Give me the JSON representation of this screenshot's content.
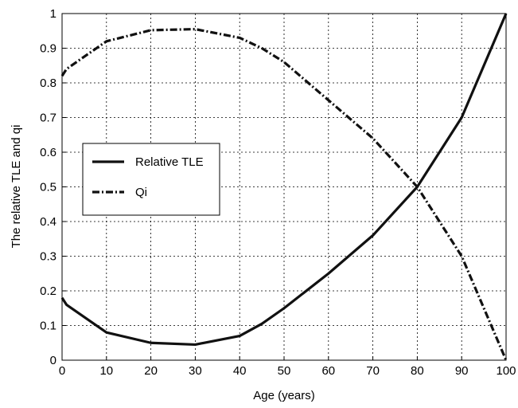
{
  "chart_data": {
    "type": "line",
    "title": "",
    "xlabel": "Age (years)",
    "ylabel": "The relative TLE and qi",
    "xlim": [
      0,
      100
    ],
    "ylim": [
      0,
      1
    ],
    "x_ticks": [
      "0",
      "10",
      "20",
      "30",
      "40",
      "50",
      "60",
      "70",
      "80",
      "90",
      "100"
    ],
    "y_ticks": [
      "0",
      "0.1",
      "0.2",
      "0.3",
      "0.4",
      "0.5",
      "0.6",
      "0.7",
      "0.8",
      "0.9",
      "1"
    ],
    "grid": true,
    "legend_position": "center-left",
    "series": [
      {
        "name": "Relative TLE",
        "style": "solid",
        "color": "#111111",
        "x": [
          0,
          1,
          10,
          20,
          30,
          40,
          45,
          50,
          60,
          70,
          80,
          90,
          100
        ],
        "y": [
          0.18,
          0.16,
          0.08,
          0.05,
          0.045,
          0.07,
          0.105,
          0.15,
          0.25,
          0.36,
          0.5,
          0.7,
          1.0
        ]
      },
      {
        "name": "Qi",
        "style": "dash-dot",
        "color": "#111111",
        "x": [
          0,
          1,
          10,
          20,
          30,
          40,
          45,
          50,
          60,
          70,
          80,
          90,
          100
        ],
        "y": [
          0.82,
          0.84,
          0.92,
          0.952,
          0.955,
          0.93,
          0.9,
          0.86,
          0.75,
          0.64,
          0.5,
          0.3,
          0.0
        ]
      }
    ]
  }
}
